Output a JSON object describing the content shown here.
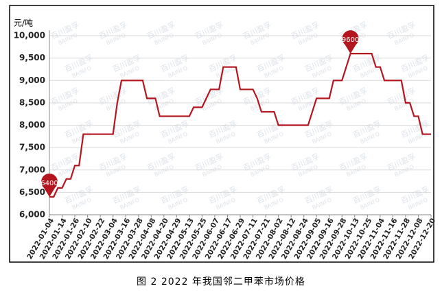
{
  "chart_data": {
    "type": "line",
    "unit_label": "元/吨",
    "caption": "图 2 2022 年我国邻二甲苯市场价格",
    "watermark": "百川盈孚",
    "watermark_en": "BAINFO",
    "color": "#b3161e",
    "grid": true,
    "ylim": [
      6000,
      10000
    ],
    "yticks": [
      {
        "value": 6000,
        "label": "6,000"
      },
      {
        "value": 6500,
        "label": "6,500"
      },
      {
        "value": 7000,
        "label": "7,000"
      },
      {
        "value": 7500,
        "label": "7,500"
      },
      {
        "value": 8000,
        "label": "8,000"
      },
      {
        "value": 8500,
        "label": "8,500"
      },
      {
        "value": 9000,
        "label": "9,000"
      },
      {
        "value": 9500,
        "label": "9,500"
      },
      {
        "value": 10000,
        "label": "10,000"
      }
    ],
    "categories": [
      "2022-01-04",
      null,
      null,
      "2022-01-14",
      null,
      null,
      "2022-01-26",
      null,
      null,
      "2022-02-10",
      null,
      null,
      "2022-02-22",
      null,
      null,
      "2022-03-04",
      null,
      null,
      "2022-03-16",
      null,
      null,
      "2022-03-28",
      null,
      null,
      "2022-04-08",
      null,
      null,
      "2022-04-20",
      null,
      null,
      "2022-04-29",
      null,
      null,
      "2022-05-13",
      null,
      null,
      "2022-05-25",
      null,
      null,
      "2022-06-07",
      null,
      null,
      "2022-06-17",
      null,
      null,
      "2022-06-29",
      null,
      null,
      "2022-07-11",
      null,
      null,
      "2022-07-21",
      null,
      null,
      "2022-08-02",
      null,
      null,
      "2022-08-12",
      null,
      null,
      "2022-08-24",
      null,
      null,
      "2022-09-05",
      null,
      null,
      "2022-09-16",
      null,
      null,
      "2022-09-28",
      null,
      null,
      "2022-10-13",
      null,
      null,
      "2022-10-25",
      null,
      null,
      "2022-11-04",
      null,
      null,
      "2022-11-16",
      null,
      null,
      "2022-11-28",
      null,
      null,
      "2022-12-08",
      null,
      null,
      "2022-12-20"
    ],
    "values": [
      6400,
      6400,
      6600,
      6600,
      6800,
      6800,
      7100,
      7100,
      7800,
      7800,
      7800,
      7800,
      7800,
      7800,
      7800,
      7800,
      8500,
      9000,
      9000,
      9000,
      9000,
      9000,
      9000,
      8600,
      8600,
      8600,
      8200,
      8200,
      8200,
      8200,
      8200,
      8200,
      8200,
      8200,
      8400,
      8400,
      8400,
      8600,
      8800,
      8800,
      8800,
      9300,
      9300,
      9300,
      9300,
      8800,
      8800,
      8800,
      8800,
      8600,
      8300,
      8300,
      8300,
      8300,
      8000,
      8000,
      8000,
      8000,
      8000,
      8000,
      8000,
      8000,
      8300,
      8600,
      8600,
      8600,
      8600,
      9000,
      9000,
      9000,
      9300,
      9600,
      9600,
      9600,
      9600,
      9600,
      9600,
      9300,
      9300,
      9000,
      9000,
      9000,
      9000,
      9000,
      8500,
      8500,
      8200,
      8200,
      7800,
      7800,
      7800
    ]
  }
}
